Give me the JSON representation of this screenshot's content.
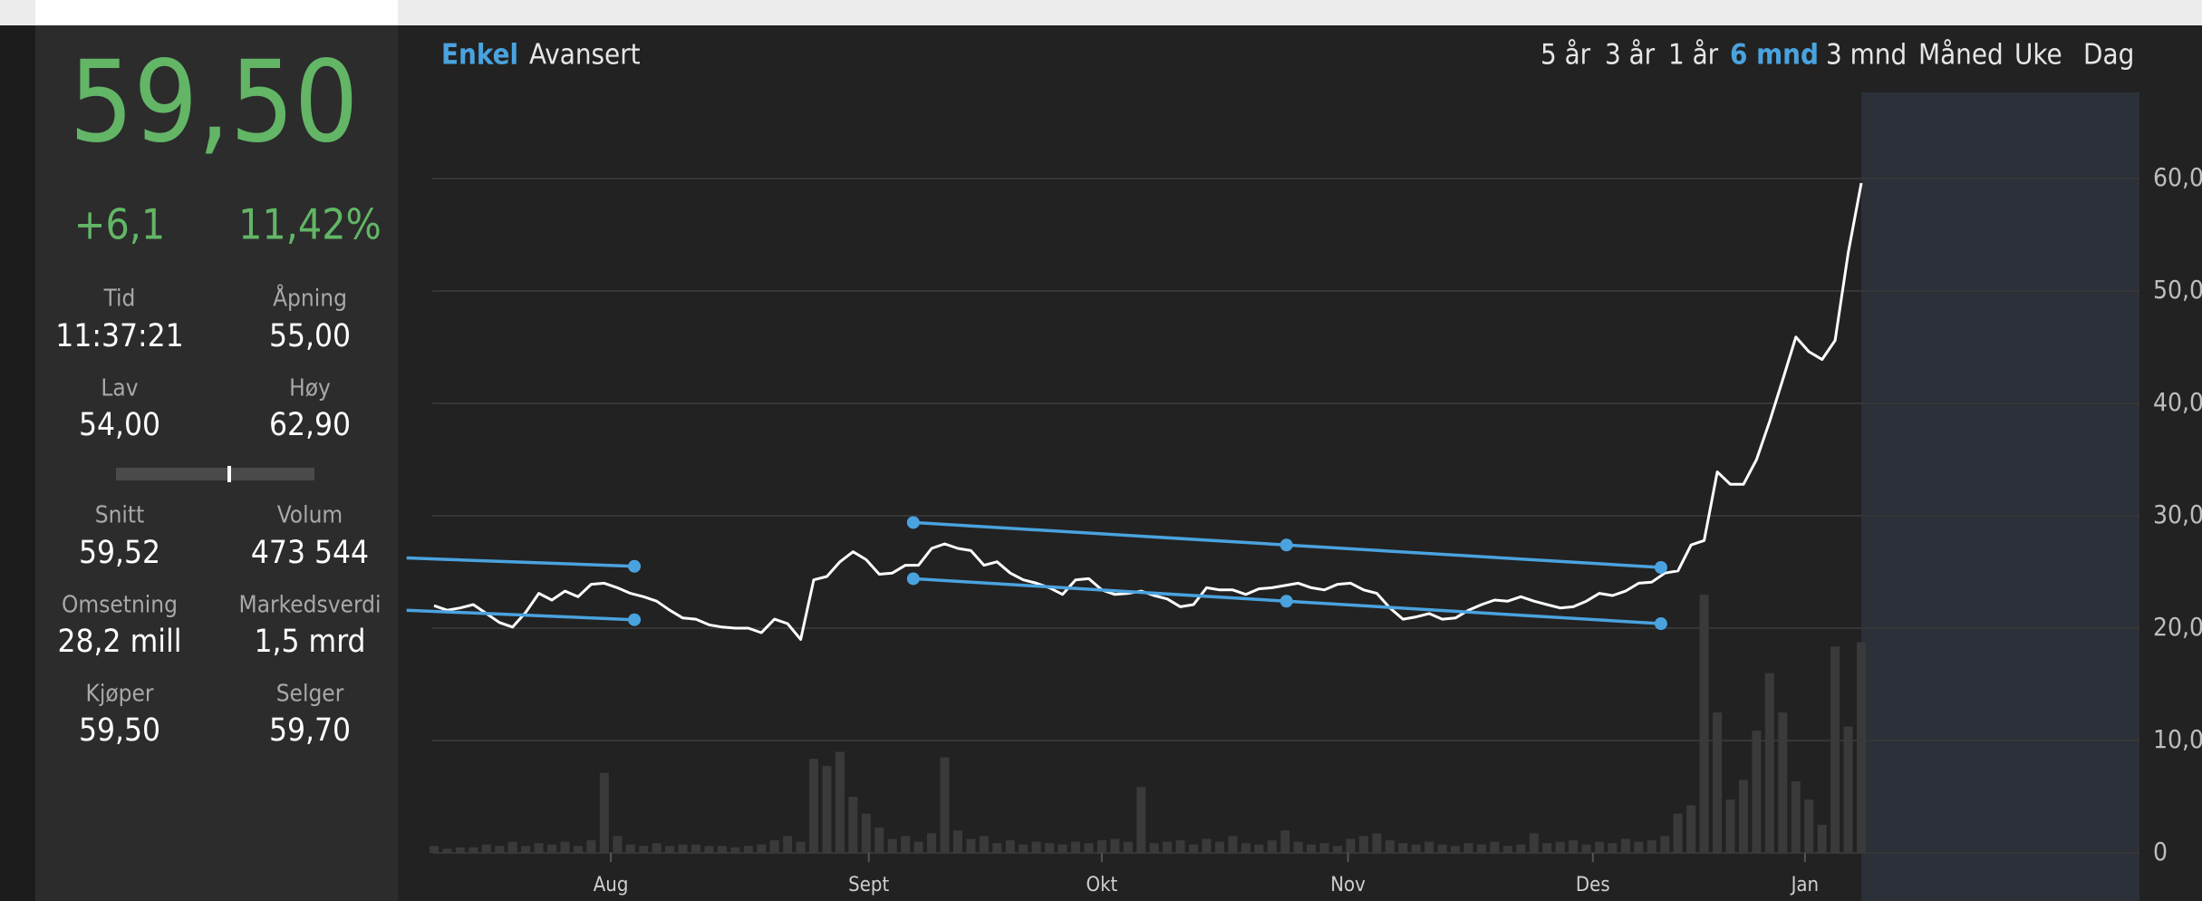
{
  "sidebar": {
    "price": "59,50",
    "change": "+6,1",
    "change_pct": "11,42%",
    "stats": [
      {
        "label": "Tid",
        "value": "11:37:21"
      },
      {
        "label": "Åpning",
        "value": "55,00"
      },
      {
        "label": "Lav",
        "value": "54,00"
      },
      {
        "label": "Høy",
        "value": "62,90"
      },
      {
        "label": "Snitt",
        "value": "59,52"
      },
      {
        "label": "Volum",
        "value": "473 544"
      },
      {
        "label": "Omsetning",
        "value": "28,2 mill"
      },
      {
        "label": "Markedsverdi",
        "value": "1,5 mrd"
      },
      {
        "label": "Kjøper",
        "value": "59,50"
      },
      {
        "label": "Selger",
        "value": "59,70"
      }
    ]
  },
  "tabs": {
    "modes": [
      {
        "label": "Enkel",
        "active": true
      },
      {
        "label": "Avansert",
        "active": false
      }
    ],
    "periods": [
      {
        "label": "5 år",
        "active": false
      },
      {
        "label": "3 år",
        "active": false
      },
      {
        "label": "1 år",
        "active": false
      },
      {
        "label": "6 mnd",
        "active": true
      },
      {
        "label": "3 mnd",
        "active": false
      },
      {
        "label": "Måned",
        "active": false
      },
      {
        "label": "Uke",
        "active": false
      },
      {
        "label": "Dag",
        "active": false
      }
    ]
  },
  "chart_data": {
    "type": "line",
    "color": "#ffffff",
    "values": [
      22.0,
      21.6,
      21.8,
      22.1,
      21.3,
      20.5,
      20.1,
      21.4,
      23.1,
      22.5,
      23.3,
      22.8,
      23.9,
      24.0,
      23.6,
      23.1,
      22.8,
      22.4,
      21.6,
      20.9,
      20.8,
      20.3,
      20.1,
      20.0,
      20.0,
      19.6,
      20.8,
      20.4,
      19.0,
      24.3,
      24.6,
      25.9,
      26.8,
      26.1,
      24.8,
      24.9,
      25.6,
      25.6,
      27.1,
      27.5,
      27.1,
      26.9,
      25.6,
      25.9,
      24.9,
      24.3,
      24.0,
      23.6,
      23.0,
      24.3,
      24.4,
      23.4,
      23.0,
      23.1,
      23.3,
      22.9,
      22.6,
      21.9,
      22.1,
      23.6,
      23.4,
      23.4,
      23.0,
      23.5,
      23.6,
      23.8,
      24.0,
      23.6,
      23.4,
      23.9,
      24.0,
      23.4,
      23.1,
      21.8,
      20.8,
      21.0,
      21.3,
      20.8,
      20.9,
      21.6,
      22.1,
      22.5,
      22.4,
      22.8,
      22.4,
      22.1,
      21.8,
      21.9,
      22.4,
      23.1,
      22.9,
      23.3,
      24.0,
      24.1,
      24.9,
      25.1,
      27.4,
      27.8,
      33.9,
      32.8,
      32.8,
      35.0,
      38.4,
      42.1,
      45.9,
      44.6,
      43.9,
      45.6,
      53.4,
      59.6
    ],
    "volume": {
      "axis": "y2",
      "color": "#3a3a3a",
      "values": [
        15000,
        9000,
        12000,
        12000,
        18000,
        15000,
        24000,
        15000,
        21000,
        18000,
        24000,
        15000,
        27000,
        171000,
        36000,
        18000,
        15000,
        21000,
        15000,
        18000,
        18000,
        15000,
        15000,
        12000,
        15000,
        18000,
        27000,
        36000,
        24000,
        201000,
        186000,
        216000,
        120000,
        84000,
        54000,
        30000,
        36000,
        24000,
        42000,
        204000,
        48000,
        30000,
        36000,
        21000,
        27000,
        18000,
        24000,
        21000,
        18000,
        24000,
        21000,
        27000,
        30000,
        24000,
        141000,
        21000,
        24000,
        27000,
        18000,
        30000,
        24000,
        36000,
        21000,
        18000,
        27000,
        48000,
        24000,
        18000,
        21000,
        15000,
        30000,
        36000,
        42000,
        27000,
        21000,
        18000,
        24000,
        18000,
        15000,
        21000,
        18000,
        24000,
        15000,
        18000,
        42000,
        21000,
        24000,
        27000,
        18000,
        24000,
        21000,
        30000,
        24000,
        27000,
        36000,
        84000,
        102000,
        552000,
        300000,
        114000,
        156000,
        261000,
        384000,
        300000,
        153000,
        114000,
        60000,
        441000,
        270000,
        450000
      ]
    },
    "xlim": [
      0,
      109
    ],
    "ylim": [
      0,
      60
    ],
    "y2lim": [
      0,
      1440000
    ],
    "xticks": [
      {
        "value": 13.5,
        "label": "Aug"
      },
      {
        "value": 33.2,
        "label": "Sept"
      },
      {
        "value": 51.0,
        "label": "Okt"
      },
      {
        "value": 69.8,
        "label": "Nov"
      },
      {
        "value": 88.5,
        "label": "Des"
      },
      {
        "value": 104.7,
        "label": "Jan"
      }
    ],
    "yticks": [
      0,
      {
        "value": 10,
        "label": "10,0"
      },
      {
        "value": 20,
        "label": "20,0"
      },
      {
        "value": 30,
        "label": "30,0"
      },
      {
        "value": 40,
        "label": "40,0"
      },
      {
        "value": 50,
        "label": "50,0"
      },
      {
        "value": 60,
        "label": "60,0"
      }
    ],
    "grid": true,
    "trendlines": [
      {
        "color": "#4aa3df",
        "x": [
          -2.1,
          15.3
        ],
        "y": [
          26.25,
          25.5
        ]
      },
      {
        "color": "#4aa3df",
        "x": [
          -2.1,
          15.3
        ],
        "y": [
          21.6,
          20.75
        ]
      },
      {
        "color": "#4aa3df",
        "x": [
          36.6,
          65.1,
          93.7
        ],
        "y": [
          29.4,
          27.4,
          25.4
        ]
      },
      {
        "color": "#4aa3df",
        "x": [
          36.6,
          65.1,
          93.7
        ],
        "y": [
          24.4,
          22.4,
          20.4
        ]
      }
    ]
  }
}
